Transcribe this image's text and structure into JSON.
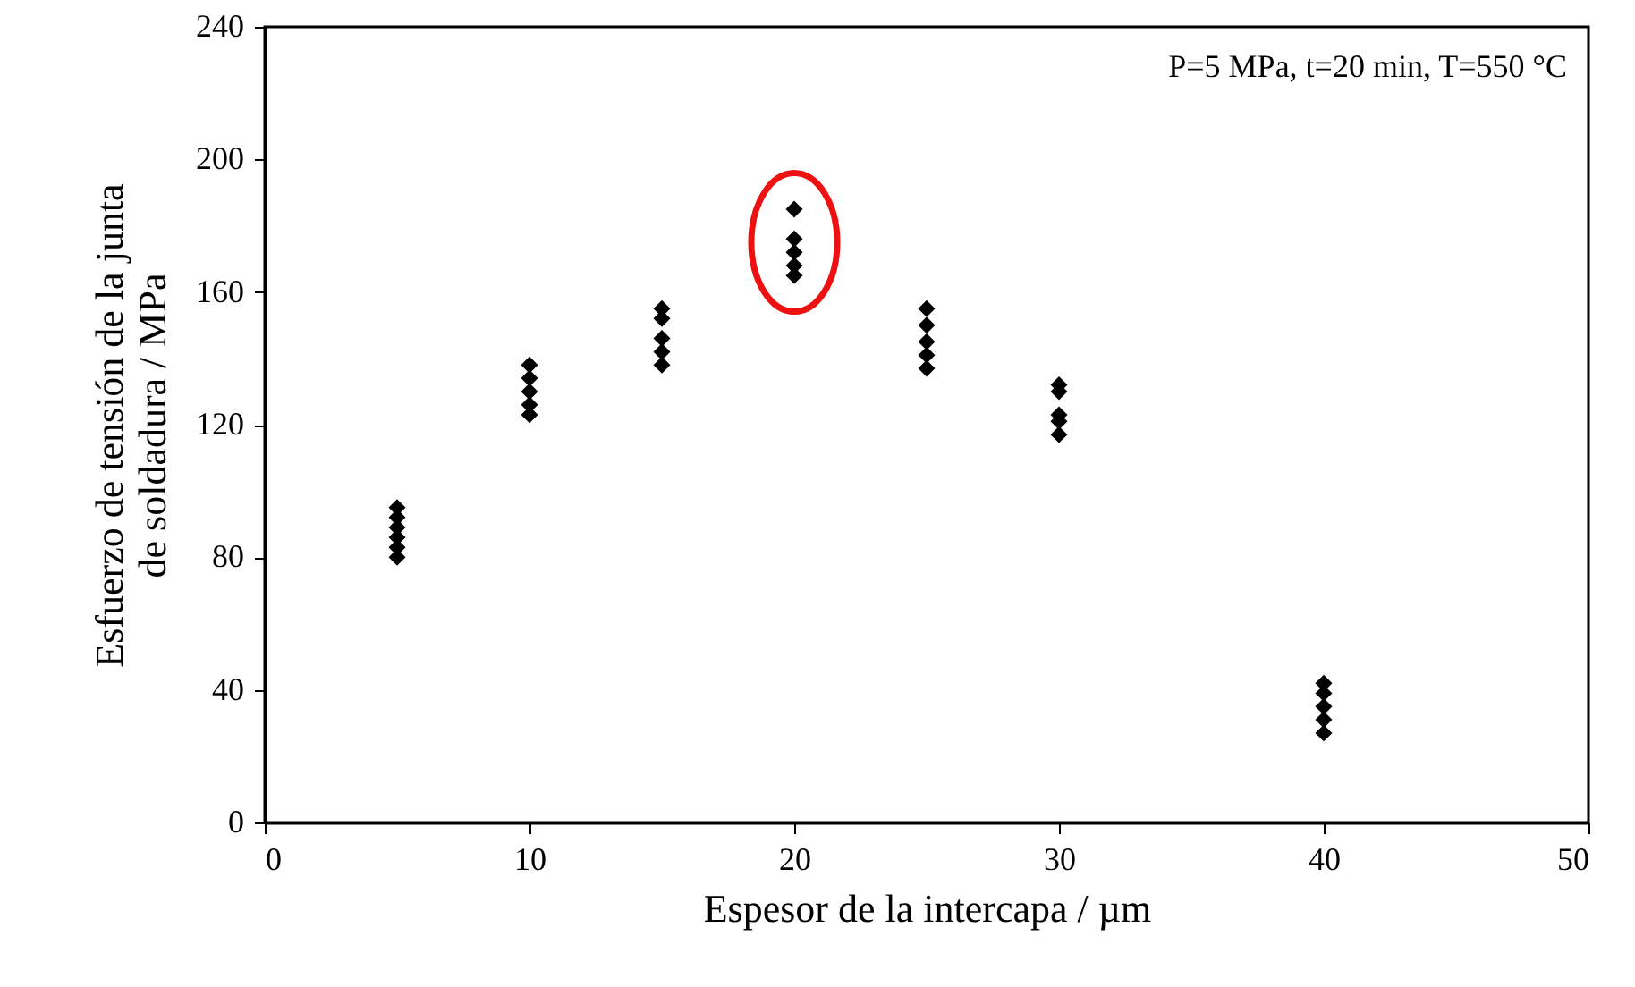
{
  "chart_data": {
    "type": "scatter",
    "xlabel": "Espesor de la intercapa / µm",
    "ylabel": [
      "Esfuerzo de tensión de la junta",
      "de soldadura / MPa"
    ],
    "x": [
      5,
      5,
      5,
      5,
      5,
      5,
      10,
      10,
      10,
      10,
      10,
      15,
      15,
      15,
      15,
      15,
      20,
      20,
      20,
      20,
      20,
      25,
      25,
      25,
      25,
      25,
      30,
      30,
      30,
      30,
      30,
      40,
      40,
      40,
      40,
      40
    ],
    "series": [
      {
        "color": "#000000",
        "values": [
          80,
          83,
          86,
          89,
          92,
          95,
          123,
          126,
          130,
          134,
          138,
          138,
          142,
          146,
          152,
          155,
          165,
          168,
          172,
          176,
          185,
          137,
          141,
          145,
          150,
          155,
          117,
          121,
          123,
          130,
          132,
          27,
          31,
          35,
          39,
          42
        ]
      }
    ],
    "marker": "diamond",
    "xlim": [
      0,
      50
    ],
    "xticks": [
      0,
      10,
      20,
      30,
      40,
      50
    ],
    "ylim": [
      0,
      240
    ],
    "yticks": [
      0,
      40,
      80,
      120,
      160,
      200,
      240
    ],
    "grid": false,
    "annotations": [
      "P=5 MPa, t=20 min, T=550 °C"
    ]
  }
}
